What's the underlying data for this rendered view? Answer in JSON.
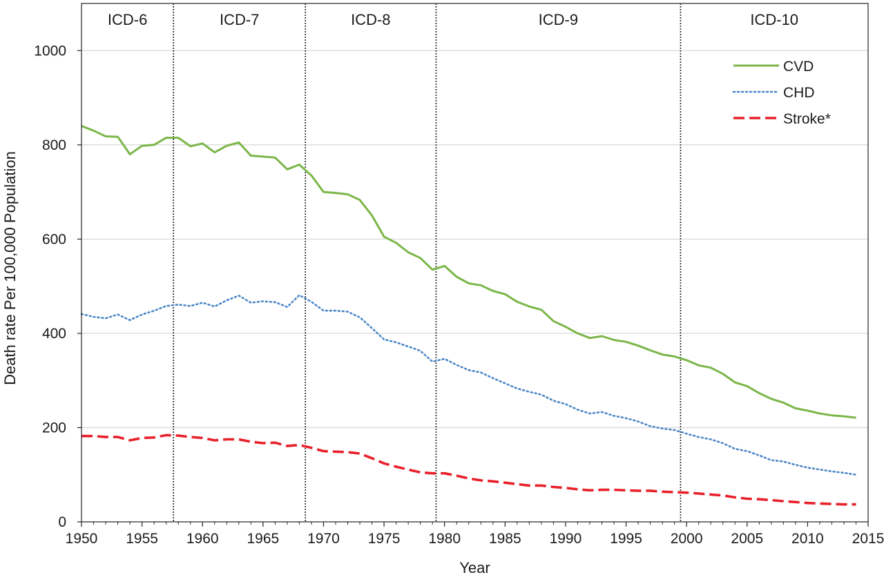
{
  "chart_data": {
    "type": "line",
    "title": "",
    "xlabel": "Year",
    "ylabel": "Death rate Per 100,000 Population",
    "xlim": [
      1950,
      2015
    ],
    "ylim": [
      0,
      1100
    ],
    "x_ticks": [
      1950,
      1955,
      1960,
      1965,
      1970,
      1975,
      1980,
      1985,
      1990,
      1995,
      2000,
      2005,
      2010,
      2015
    ],
    "y_ticks": [
      0,
      200,
      400,
      600,
      800,
      1000
    ],
    "grid": "horizontal",
    "legend_position": "top-right",
    "colors": {
      "CVD": "#7ab648",
      "CHD": "#4a86c8",
      "Stroke*": "#e8202a",
      "divider": "#222222",
      "grid": "#d9d9d9"
    },
    "x": [
      1950,
      1951,
      1952,
      1953,
      1954,
      1955,
      1956,
      1957,
      1958,
      1959,
      1960,
      1961,
      1962,
      1963,
      1964,
      1965,
      1966,
      1967,
      1968,
      1969,
      1970,
      1971,
      1972,
      1973,
      1974,
      1975,
      1976,
      1977,
      1978,
      1979,
      1980,
      1981,
      1982,
      1983,
      1984,
      1985,
      1986,
      1987,
      1988,
      1989,
      1990,
      1991,
      1992,
      1993,
      1994,
      1995,
      1996,
      1997,
      1998,
      1999,
      2000,
      2001,
      2002,
      2003,
      2004,
      2005,
      2006,
      2007,
      2008,
      2009,
      2010,
      2011,
      2012,
      2013,
      2014
    ],
    "series": [
      {
        "name": "CVD",
        "style": "solid",
        "values": [
          840,
          830,
          818,
          817,
          780,
          798,
          800,
          815,
          815,
          797,
          803,
          784,
          798,
          805,
          777,
          775,
          773,
          748,
          758,
          735,
          700,
          698,
          695,
          683,
          650,
          605,
          592,
          572,
          560,
          535,
          543,
          520,
          506,
          502,
          490,
          483,
          467,
          457,
          450,
          426,
          414,
          400,
          390,
          394,
          386,
          382,
          374,
          364,
          355,
          351,
          343,
          332,
          327,
          314,
          296,
          288,
          273,
          261,
          253,
          241,
          236,
          230,
          226,
          224,
          221
        ]
      },
      {
        "name": "CHD",
        "style": "dotted",
        "values": [
          441,
          435,
          432,
          440,
          428,
          440,
          448,
          458,
          461,
          458,
          465,
          457,
          470,
          480,
          465,
          468,
          466,
          456,
          481,
          467,
          448,
          448,
          446,
          434,
          411,
          387,
          381,
          372,
          363,
          340,
          346,
          333,
          322,
          317,
          305,
          294,
          283,
          276,
          270,
          257,
          250,
          238,
          230,
          233,
          225,
          220,
          213,
          203,
          198,
          195,
          187,
          180,
          175,
          167,
          155,
          150,
          141,
          131,
          128,
          121,
          115,
          111,
          107,
          104,
          100
        ]
      },
      {
        "name": "Stroke*",
        "style": "dashed",
        "values": [
          182,
          182,
          180,
          180,
          173,
          178,
          179,
          184,
          183,
          180,
          178,
          173,
          175,
          175,
          170,
          167,
          168,
          161,
          163,
          157,
          150,
          149,
          148,
          145,
          135,
          124,
          117,
          111,
          105,
          103,
          103,
          98,
          92,
          88,
          86,
          83,
          80,
          77,
          77,
          74,
          72,
          69,
          67,
          68,
          68,
          67,
          66,
          66,
          64,
          63,
          62,
          60,
          58,
          56,
          52,
          49,
          48,
          46,
          44,
          42,
          40,
          39,
          38,
          37,
          37
        ]
      }
    ],
    "eras": [
      {
        "label": "ICD-6",
        "start": 1950,
        "end": 1957.6
      },
      {
        "label": "ICD-7",
        "start": 1957.6,
        "end": 1968.5
      },
      {
        "label": "ICD-8",
        "start": 1968.5,
        "end": 1979.3
      },
      {
        "label": "ICD-9",
        "start": 1979.3,
        "end": 1999.5
      },
      {
        "label": "ICD-10",
        "start": 1999.5,
        "end": 2015
      }
    ],
    "legend": [
      "CVD",
      "CHD",
      "Stroke*"
    ]
  }
}
